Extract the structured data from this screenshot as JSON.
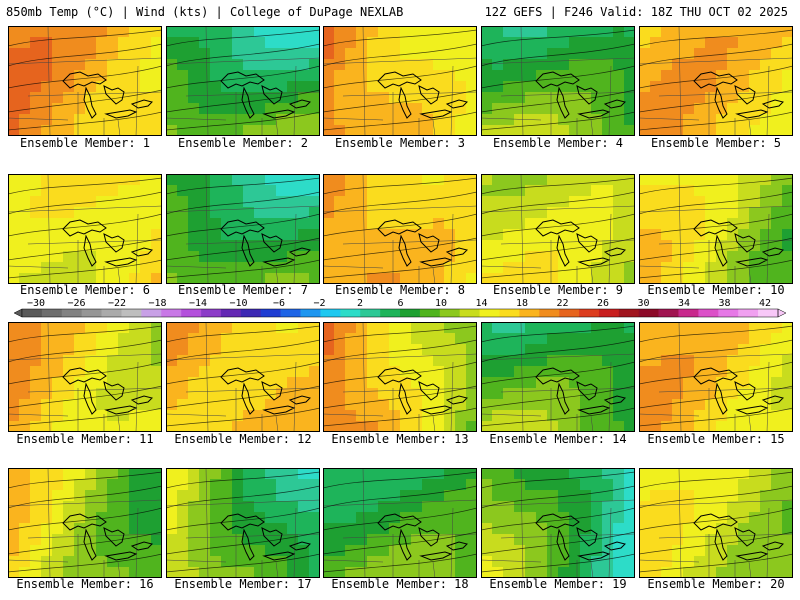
{
  "header": {
    "left": "850mb Temp (°C) | Wind (kts) | College of DuPage NEXLAB",
    "right": "12Z GEFS | F246 Valid: 18Z THU OCT 02 2025"
  },
  "caption_prefix": "Ensemble Member:",
  "members": [
    {
      "label": "Ensemble Member: 1",
      "base": 20,
      "anom_west": 0,
      "anom_east": -4,
      "cold_north": 0
    },
    {
      "label": "Ensemble Member: 2",
      "base": 8,
      "anom_west": 2,
      "anom_east": 0,
      "cold_north": 8
    },
    {
      "label": "Ensemble Member: 3",
      "base": 18,
      "anom_west": 3,
      "anom_east": -6,
      "cold_north": 0
    },
    {
      "label": "Ensemble Member: 4",
      "base": 8,
      "anom_west": 2,
      "anom_east": 0,
      "cold_north": 6
    },
    {
      "label": "Ensemble Member: 5",
      "base": 18,
      "anom_west": 0,
      "anom_east": -2,
      "cold_north": 0
    },
    {
      "label": "Ensemble Member: 6",
      "base": 14,
      "anom_west": -2,
      "anom_east": 2,
      "cold_north": 0
    },
    {
      "label": "Ensemble Member: 7",
      "base": 8,
      "anom_west": 2,
      "anom_east": -2,
      "cold_north": 6
    },
    {
      "label": "Ensemble Member: 8",
      "base": 18,
      "anom_west": 2,
      "anom_east": -4,
      "cold_north": 0
    },
    {
      "label": "Ensemble Member: 9",
      "base": 14,
      "anom_west": 0,
      "anom_east": -2,
      "cold_north": 2
    },
    {
      "label": "Ensemble Member: 10",
      "base": 12,
      "anom_west": 4,
      "anom_east": -4,
      "cold_north": 0
    },
    {
      "label": "Ensemble Member: 11",
      "base": 16,
      "anom_west": 2,
      "anom_east": -4,
      "cold_north": 0
    },
    {
      "label": "Ensemble Member: 12",
      "base": 18,
      "anom_west": 0,
      "anom_east": -2,
      "cold_north": 0
    },
    {
      "label": "Ensemble Member: 13",
      "base": 16,
      "anom_west": 6,
      "anom_east": -8,
      "cold_north": 0
    },
    {
      "label": "Ensemble Member: 14",
      "base": 8,
      "anom_west": 2,
      "anom_east": 0,
      "cold_north": 6
    },
    {
      "label": "Ensemble Member: 15",
      "base": 18,
      "anom_west": 0,
      "anom_east": -4,
      "cold_north": 0
    },
    {
      "label": "Ensemble Member: 16",
      "base": 14,
      "anom_west": 2,
      "anom_east": -8,
      "cold_north": 0
    },
    {
      "label": "Ensemble Member: 17",
      "base": 10,
      "anom_west": 4,
      "anom_east": -8,
      "cold_north": 2
    },
    {
      "label": "Ensemble Member: 18",
      "base": 8,
      "anom_west": 0,
      "anom_east": 0,
      "cold_north": 4
    },
    {
      "label": "Ensemble Member: 19",
      "base": 8,
      "anom_west": 4,
      "anom_east": -8,
      "cold_north": 2
    },
    {
      "label": "Ensemble Member: 20",
      "base": 14,
      "anom_west": 0,
      "anom_east": -4,
      "cold_north": 0
    }
  ],
  "colorbar": {
    "ticks": [
      "−30",
      "−26",
      "−22",
      "−18",
      "−14",
      "−10",
      "−6",
      "−2",
      "2",
      "6",
      "10",
      "14",
      "18",
      "22",
      "26",
      "30",
      "34",
      "38",
      "42"
    ],
    "colors": [
      "#5a5a5a",
      "#6e6e6e",
      "#828282",
      "#969696",
      "#aaaaaa",
      "#bebebe",
      "#c8a0e6",
      "#c878e6",
      "#b450dc",
      "#8c3cc8",
      "#6428b4",
      "#3c28b4",
      "#1e3cd2",
      "#1e64e6",
      "#1e96f0",
      "#1ec8f0",
      "#2ddcc8",
      "#2dc896",
      "#1eb45a",
      "#1ea032",
      "#50b41e",
      "#8cc81e",
      "#c8dc1e",
      "#f0f01e",
      "#fadc1e",
      "#fab41e",
      "#f08c1e",
      "#e6641e",
      "#dc3c1e",
      "#c81e1e",
      "#a0141e",
      "#8c0a28",
      "#a01450",
      "#c8288c",
      "#dc50c8",
      "#e678e6",
      "#f0a0f0",
      "#f8c8f8"
    ],
    "range_min": -36,
    "range_max": 44
  }
}
